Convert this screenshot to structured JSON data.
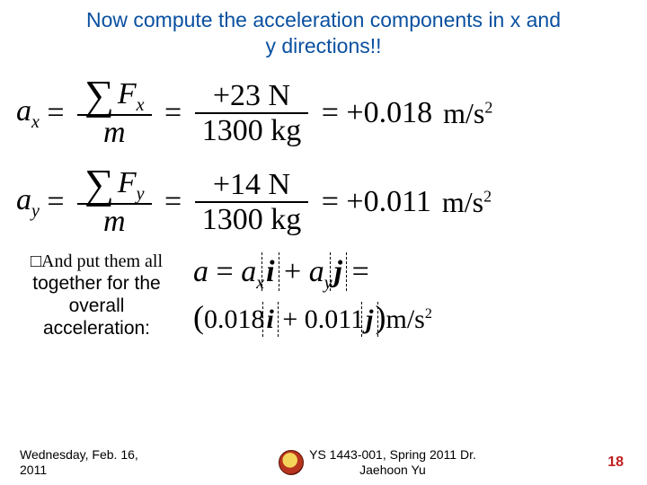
{
  "title_line1": "Now compute the acceleration components in x and",
  "title_line2": "y directions!!",
  "title_color": "#0a50a0",
  "eq_x": {
    "lhs_a": "a",
    "lhs_sub": "x",
    "num_F": "F",
    "num_sub": "x",
    "den_m": "m",
    "mid_num": "+23 N",
    "mid_den": "1300 kg",
    "rhs_val": "+0.018",
    "rhs_unit": "m/s",
    "rhs_exp": "2"
  },
  "eq_y": {
    "lhs_a": "a",
    "lhs_sub": "y",
    "num_F": "F",
    "num_sub": "y",
    "den_m": "m",
    "mid_num": "+14 N",
    "mid_den": "1300 kg",
    "rhs_val": "+0.011",
    "rhs_unit": "m/s",
    "rhs_exp": "2"
  },
  "bottom_text": {
    "script": "□And put them all",
    "rest1": "together for the",
    "rest2": "overall",
    "rest3": "acceleration:"
  },
  "vec": {
    "a": "a",
    "eq": "=",
    "ax": "a",
    "ax_sub": "x",
    "i": "i",
    "plus": "+",
    "ay": "a",
    "ay_sub": "y",
    "j": "j",
    "l2_v1": "0.018",
    "l2_v2": "0.011",
    "l2_unit": "m/s",
    "l2_exp": "2"
  },
  "footer": {
    "date1": "Wednesday, Feb. 16,",
    "date2": "2011",
    "mid1": "YS 1443-001, Spring 2011 Dr.",
    "mid2": "Jaehoon Yu",
    "page": "18"
  }
}
